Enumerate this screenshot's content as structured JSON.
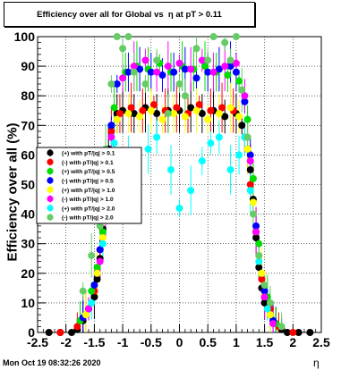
{
  "title": "Efficiency over all for Global vs  η at pT > 0.11",
  "timestamp": "Mon Oct 19 08:32:26 2020",
  "chart_data": {
    "type": "scatter",
    "xlabel": "η",
    "ylabel": "Efficiency over all (%)",
    "xlim": [
      -2.5,
      2.5
    ],
    "ylim": [
      0,
      100
    ],
    "xticks": [
      "-2.5",
      "-2",
      "-1.5",
      "-1",
      "-0.5",
      "0",
      "0.5",
      "1",
      "1.5",
      "2",
      "2.5"
    ],
    "yticks": [
      "0",
      "10",
      "20",
      "30",
      "40",
      "50",
      "60",
      "70",
      "80",
      "90",
      "100"
    ],
    "grid": true,
    "legend_position": "left",
    "series": [
      {
        "name": "(+) with pT/|q| > 0.1",
        "color": "#000000",
        "x": [
          -2.3,
          -2.1,
          -1.9,
          -1.8,
          -1.7,
          -1.6,
          -1.5,
          -1.45,
          -1.4,
          -1.35,
          -1.3,
          -1.25,
          -1.2,
          -1.1,
          -1.0,
          -0.8,
          -0.6,
          -0.4,
          -0.2,
          0.0,
          0.2,
          0.4,
          0.6,
          0.8,
          1.0,
          1.1,
          1.2,
          1.25,
          1.3,
          1.35,
          1.4,
          1.45,
          1.5,
          1.6,
          1.7,
          1.8,
          1.9,
          2.1,
          2.3
        ],
        "y": [
          0,
          0,
          0,
          1,
          4,
          8,
          12,
          18,
          25,
          35,
          52,
          62,
          70,
          74,
          75,
          74,
          76,
          74,
          75,
          75,
          76,
          74,
          75,
          73,
          74,
          70,
          62,
          55,
          45,
          32,
          22,
          15,
          10,
          6,
          3,
          1,
          0,
          0,
          0
        ]
      },
      {
        "name": "(-) with pT/|q| > 0.1",
        "color": "#ff0000",
        "x": [
          -2.1,
          -1.8,
          -1.65,
          -1.5,
          -1.4,
          -1.3,
          -1.2,
          -1.05,
          -0.85,
          -0.65,
          -0.45,
          -0.25,
          -0.05,
          0.15,
          0.35,
          0.55,
          0.75,
          0.95,
          1.15,
          1.25,
          1.35,
          1.45,
          1.6,
          1.75,
          2.0
        ],
        "y": [
          0,
          2,
          6,
          14,
          28,
          48,
          68,
          74,
          76,
          75,
          77,
          75,
          76,
          74,
          77,
          75,
          76,
          75,
          66,
          50,
          34,
          18,
          8,
          2,
          0
        ]
      },
      {
        "name": "(+) with pT/|q| > 0.5",
        "color": "#00dd00",
        "x": [
          -1.75,
          -1.55,
          -1.45,
          -1.35,
          -1.25,
          -1.15,
          -0.95,
          -0.75,
          -0.55,
          -0.35,
          -0.15,
          0.05,
          0.25,
          0.45,
          0.65,
          0.85,
          1.05,
          1.2,
          1.3,
          1.4,
          1.55,
          1.7
        ],
        "y": [
          4,
          14,
          22,
          34,
          58,
          76,
          88,
          90,
          89,
          91,
          88,
          90,
          89,
          90,
          88,
          87,
          85,
          72,
          52,
          30,
          12,
          3
        ]
      },
      {
        "name": "(-) with pT/|q| > 0.5",
        "color": "#0000ff",
        "x": [
          -1.7,
          -1.5,
          -1.4,
          -1.3,
          -1.2,
          -1.1,
          -0.9,
          -0.7,
          -0.5,
          -0.3,
          -0.1,
          0.1,
          0.3,
          0.5,
          0.7,
          0.9,
          1.0,
          1.15,
          1.25,
          1.35,
          1.5,
          1.65
        ],
        "y": [
          5,
          16,
          28,
          46,
          70,
          84,
          88,
          89,
          88,
          87,
          88,
          89,
          86,
          88,
          89,
          90,
          88,
          78,
          60,
          36,
          14,
          4
        ]
      },
      {
        "name": "(+) with pT/|q| > 1.0",
        "color": "#ffff00",
        "x": [
          -1.65,
          -1.45,
          -1.35,
          -1.25,
          -1.1,
          -0.9,
          -0.7,
          -0.5,
          -0.3,
          -0.1,
          0.1,
          0.3,
          0.5,
          0.7,
          0.9,
          1.05,
          1.2,
          1.3,
          1.45,
          1.6
        ],
        "y": [
          6,
          20,
          32,
          56,
          72,
          74,
          73,
          75,
          72,
          74,
          73,
          75,
          72,
          74,
          76,
          73,
          62,
          44,
          20,
          6
        ]
      },
      {
        "name": "(-) with pT/|q| > 1.0",
        "color": "#ff00ff",
        "x": [
          -1.6,
          -1.4,
          -1.3,
          -1.2,
          -1.0,
          -0.8,
          -0.6,
          -0.4,
          -0.2,
          0.0,
          0.2,
          0.4,
          0.6,
          0.8,
          1.0,
          1.15,
          1.25,
          1.35,
          1.5,
          1.65
        ],
        "y": [
          8,
          24,
          40,
          66,
          86,
          90,
          92,
          88,
          90,
          91,
          89,
          92,
          88,
          90,
          91,
          80,
          58,
          34,
          12,
          3
        ]
      },
      {
        "name": "(+) with pT/|q| > 2.0",
        "color": "#00ffff",
        "x": [
          -1.55,
          -1.35,
          -1.25,
          -1.15,
          -0.9,
          -0.75,
          -0.55,
          -0.4,
          -0.15,
          0.0,
          0.2,
          0.4,
          0.55,
          0.7,
          0.9,
          1.05,
          1.15,
          1.25,
          1.4,
          1.55
        ],
        "y": [
          10,
          30,
          52,
          64,
          60,
          52,
          62,
          66,
          55,
          42,
          48,
          58,
          64,
          66,
          55,
          60,
          66,
          48,
          24,
          8
        ]
      },
      {
        "name": "(-) with pT/|q| > 2.0",
        "color": "#66cc66",
        "x": [
          -1.7,
          -1.55,
          -1.4,
          -1.3,
          -1.2,
          -1.1,
          -1.0,
          -0.9,
          -0.8,
          -0.6,
          -0.4,
          -0.2,
          0.0,
          0.1,
          0.3,
          0.5,
          0.6,
          0.8,
          0.9,
          1.0,
          1.1,
          1.2,
          1.3,
          1.4,
          1.5,
          1.6,
          1.8
        ],
        "y": [
          14,
          26,
          36,
          62,
          84,
          100,
          96,
          100,
          88,
          84,
          92,
          74,
          84,
          80,
          96,
          92,
          100,
          98,
          92,
          100,
          82,
          66,
          40,
          26,
          16,
          10,
          2
        ]
      }
    ]
  }
}
